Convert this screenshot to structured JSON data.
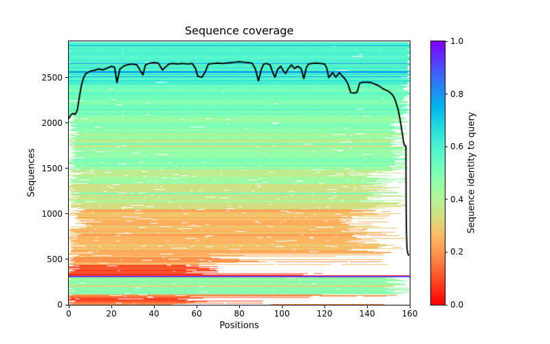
{
  "title": "Sequence coverage",
  "axes": {
    "xlabel": "Positions",
    "ylabel": "Sequences",
    "xlim": [
      0,
      160
    ],
    "ylim": [
      0,
      2900
    ],
    "xtick_labels": [
      "0",
      "20",
      "40",
      "60",
      "80",
      "100",
      "120",
      "140",
      "160"
    ],
    "xtick_values": [
      0,
      20,
      40,
      60,
      80,
      100,
      120,
      140,
      160
    ],
    "ytick_labels": [
      "0",
      "500",
      "1000",
      "1500",
      "2000",
      "2500"
    ],
    "ytick_values": [
      0,
      500,
      1000,
      1500,
      2000,
      2500
    ]
  },
  "colorbar": {
    "label": "Sequence identity to query",
    "tick_labels": [
      "1.0",
      "0.8",
      "0.6",
      "0.4",
      "0.2",
      "0.0"
    ],
    "tick_values": [
      1.0,
      0.8,
      0.6,
      0.4,
      0.2,
      0.0
    ],
    "vmin": 0.0,
    "vmax": 1.0,
    "colormap": "rainbow_r",
    "color_at_0": "#ff0000",
    "color_at_0_2": "#ff9650",
    "color_at_0_4": "#b2f296",
    "color_at_0_6": "#4deece",
    "color_at_0_8": "#1996f3",
    "color_at_1": "#7f00ff"
  },
  "chart_data": {
    "type": "heatmap",
    "title": "Sequence coverage",
    "xlabel": "Positions",
    "ylabel": "Sequences",
    "xlim": [
      0,
      160
    ],
    "ylim": [
      0,
      2900
    ],
    "n_positions": 160,
    "n_sequences": 2900,
    "colormap": "rainbow_r (identity 0 = red, 1 = purple)",
    "coverage_line": {
      "description": "number of aligned sequences per position (black line)",
      "color": "#000000",
      "width": 2,
      "points": [
        [
          0,
          2050
        ],
        [
          1,
          2090
        ],
        [
          2,
          2105
        ],
        [
          3,
          2095
        ],
        [
          4,
          2140
        ],
        [
          5,
          2290
        ],
        [
          6,
          2420
        ],
        [
          7,
          2500
        ],
        [
          8,
          2545
        ],
        [
          10,
          2570
        ],
        [
          12,
          2580
        ],
        [
          14,
          2595
        ],
        [
          16,
          2585
        ],
        [
          18,
          2605
        ],
        [
          20,
          2625
        ],
        [
          21.5,
          2615
        ],
        [
          22.6,
          2445
        ],
        [
          24,
          2595
        ],
        [
          26,
          2630
        ],
        [
          28,
          2645
        ],
        [
          30,
          2650
        ],
        [
          32,
          2640
        ],
        [
          33.5,
          2580
        ],
        [
          34.8,
          2530
        ],
        [
          36,
          2640
        ],
        [
          38,
          2660
        ],
        [
          40,
          2665
        ],
        [
          42,
          2660
        ],
        [
          44,
          2585
        ],
        [
          45.5,
          2620
        ],
        [
          47,
          2650
        ],
        [
          49,
          2655
        ],
        [
          51,
          2650
        ],
        [
          53,
          2655
        ],
        [
          56,
          2650
        ],
        [
          58,
          2655
        ],
        [
          59.5,
          2600
        ],
        [
          60.5,
          2515
        ],
        [
          62.5,
          2505
        ],
        [
          64,
          2560
        ],
        [
          65.5,
          2650
        ],
        [
          68,
          2655
        ],
        [
          70,
          2660
        ],
        [
          72,
          2655
        ],
        [
          74,
          2660
        ],
        [
          76,
          2665
        ],
        [
          78,
          2670
        ],
        [
          80,
          2675
        ],
        [
          82,
          2670
        ],
        [
          84,
          2665
        ],
        [
          86,
          2660
        ],
        [
          87.5,
          2600
        ],
        [
          89,
          2465
        ],
        [
          90.5,
          2600
        ],
        [
          91.5,
          2650
        ],
        [
          93,
          2655
        ],
        [
          94.5,
          2640
        ],
        [
          96,
          2540
        ],
        [
          96.8,
          2505
        ],
        [
          98,
          2590
        ],
        [
          99.5,
          2625
        ],
        [
          100.8,
          2570
        ],
        [
          101.8,
          2545
        ],
        [
          103,
          2600
        ],
        [
          104.5,
          2640
        ],
        [
          106,
          2600
        ],
        [
          107.5,
          2625
        ],
        [
          109,
          2600
        ],
        [
          110.3,
          2490
        ],
        [
          111.5,
          2610
        ],
        [
          112.5,
          2650
        ],
        [
          114,
          2655
        ],
        [
          116,
          2660
        ],
        [
          118,
          2655
        ],
        [
          120,
          2650
        ],
        [
          121,
          2610
        ],
        [
          122,
          2500
        ],
        [
          123.8,
          2555
        ],
        [
          125.3,
          2505
        ],
        [
          127,
          2555
        ],
        [
          128.5,
          2515
        ],
        [
          129.8,
          2480
        ],
        [
          131,
          2430
        ],
        [
          132.3,
          2335
        ],
        [
          134,
          2330
        ],
        [
          135.3,
          2340
        ],
        [
          136.5,
          2440
        ],
        [
          138,
          2450
        ],
        [
          140,
          2450
        ],
        [
          142,
          2445
        ],
        [
          144,
          2425
        ],
        [
          145.5,
          2410
        ],
        [
          147,
          2385
        ],
        [
          148.5,
          2365
        ],
        [
          150,
          2350
        ],
        [
          151.5,
          2320
        ],
        [
          152.5,
          2290
        ],
        [
          153.5,
          2230
        ],
        [
          154.5,
          2150
        ],
        [
          155.3,
          2060
        ],
        [
          156,
          1960
        ],
        [
          156.6,
          1870
        ],
        [
          157.1,
          1790
        ],
        [
          157.5,
          1755
        ],
        [
          158.2,
          1748
        ],
        [
          158.3,
          1100
        ],
        [
          158.45,
          800
        ],
        [
          158.7,
          620
        ],
        [
          159.1,
          565
        ],
        [
          159.5,
          545
        ]
      ]
    },
    "identity_bands": [
      {
        "seq_from": 0,
        "seq_to": 22,
        "id_min": 0.1,
        "id_max": 0.22,
        "start_min": 0,
        "start_max": 1,
        "end_modes": [
          {
            "p": 0.6,
            "min": 48,
            "max": 68
          },
          {
            "min": 100,
            "max": 148
          }
        ],
        "gap_factor": 1.6,
        "base_gap": 0.05
      },
      {
        "seq_from": 22,
        "seq_to": 95,
        "id_min": 0.05,
        "id_max": 0.15,
        "start_min": 0,
        "start_max": 1,
        "end_modes": [
          {
            "p": 0.7,
            "min": 50,
            "max": 68
          },
          {
            "min": 80,
            "max": 125
          }
        ],
        "gap_factor": 1.7,
        "base_gap": 0.06
      },
      {
        "seq_from": 95,
        "seq_to": 115,
        "id_min": 0.18,
        "id_max": 0.3,
        "start_min": 0,
        "start_max": 1,
        "end_min": 118,
        "end_max": 158,
        "gap_factor": 1.6,
        "base_gap": 0.05
      },
      {
        "seq_from": 115,
        "seq_to": 300,
        "id_min": 0.43,
        "id_max": 0.5,
        "outlier": {
          "prob": 0.08,
          "id_min": 0.28,
          "id_max": 0.36
        },
        "start_min": 0,
        "start_max": 1,
        "end_min": 147,
        "end_max": 160,
        "gap_factor": 0.8,
        "base_gap": 0.02
      },
      {
        "seq_from": 300,
        "seq_to": 313,
        "id_min": 0.24,
        "id_max": 0.34,
        "start_min": 0,
        "start_max": 1,
        "end_min": 130,
        "end_max": 160,
        "gap_factor": 1.2,
        "base_gap": 0.04
      },
      {
        "seq_from": 322,
        "seq_to": 332,
        "id_min": 0.07,
        "id_max": 0.12,
        "start_min": 0,
        "start_max": 1,
        "end_modes": [
          {
            "p": 0.5,
            "min": 55,
            "max": 90
          },
          {
            "min": 120,
            "max": 160
          }
        ],
        "gap_factor": 1.2,
        "base_gap": 0.05
      },
      {
        "seq_from": 332,
        "seq_to": 442,
        "id_min": 0.05,
        "id_max": 0.14,
        "start_min": 0,
        "start_max": 1,
        "end_modes": [
          {
            "p": 0.7,
            "min": 52,
            "max": 70
          },
          {
            "min": 90,
            "max": 152
          }
        ],
        "gap_factor": 1.7,
        "base_gap": 0.06
      },
      {
        "seq_from": 442,
        "seq_to": 562,
        "id_min": 0.17,
        "id_max": 0.28,
        "start_min": 0,
        "start_max": 3,
        "end_modes": [
          {
            "p": 0.5,
            "min": 55,
            "max": 100
          },
          {
            "min": 108,
            "max": 158
          }
        ],
        "gap_factor": 2.2,
        "base_gap": 0.06
      },
      {
        "seq_from": 562,
        "seq_to": 845,
        "id_min": 0.2,
        "id_max": 0.3,
        "outlier": {
          "prob": 0.06,
          "id_min": 0.32,
          "id_max": 0.38
        },
        "start_min": 0,
        "start_max": 2,
        "end_min": 126,
        "end_max": 158,
        "gap_factor": 2.3,
        "base_gap": 0.05
      },
      {
        "seq_from": 845,
        "seq_to": 1055,
        "id_min": 0.21,
        "id_max": 0.31,
        "start_min": 0,
        "start_max": 9,
        "end_min": 126,
        "end_max": 158,
        "gap_factor": 2.3,
        "base_gap": 0.05
      },
      {
        "seq_from": 1055,
        "seq_to": 1495,
        "id_min": 0.32,
        "id_max": 0.42,
        "outlier": {
          "prob": 0.15,
          "id_min": 0.44,
          "id_max": 0.5
        },
        "start_min": 0,
        "start_max": 2,
        "end_min": 136,
        "end_max": 159,
        "gap_factor": 1.9,
        "base_gap": 0.04
      },
      {
        "seq_from": 1495,
        "seq_to": 2085,
        "id_min": 0.42,
        "id_max": 0.52,
        "outlier": {
          "prob": 0.12,
          "id_min": 0.34,
          "id_max": 0.4
        },
        "start_min": 0,
        "start_max": 4,
        "end_min": 150,
        "end_max": 160,
        "gap_factor": 1.0,
        "base_gap": 0.02
      },
      {
        "seq_from": 2085,
        "seq_to": 2430,
        "id_min": 0.48,
        "id_max": 0.57,
        "start_min": 0,
        "start_max": 1,
        "end_min": 155,
        "end_max": 160,
        "gap_factor": 0.5,
        "base_gap": 0.01
      },
      {
        "seq_from": 2430,
        "seq_to": 2900,
        "id_min": 0.55,
        "id_max": 0.64,
        "outlier": {
          "prob": 0.05,
          "id_min": 0.7,
          "id_max": 0.82
        },
        "start_min": 0,
        "start_max": 0,
        "end_min": 158,
        "end_max": 160,
        "gap_factor": 0.18,
        "base_gap": 0.004
      }
    ],
    "highlight_rows": [
      {
        "seq": 318,
        "identity": 1.0,
        "x0": 0,
        "x1": 160,
        "note": "query row (purple)"
      },
      {
        "seq": 312,
        "identity": 0.82,
        "x0": 0,
        "x1": 160,
        "note": "blue row under query"
      },
      {
        "seq": 326,
        "identity": 0.08,
        "x0": 0,
        "x1": 160,
        "note": "red row above query"
      },
      {
        "seq": 10,
        "identity": 0.15,
        "x0": 95,
        "x1": 148,
        "note": "detached red segment bottom right"
      },
      {
        "seq": 2852,
        "identity": 0.78,
        "x0": 0,
        "x1": 160
      },
      {
        "seq": 2655,
        "identity": 0.8,
        "x0": 0,
        "x1": 160
      },
      {
        "seq": 2572,
        "identity": 0.74,
        "x0": 0,
        "x1": 160
      },
      {
        "seq": 2470,
        "identity": 0.7,
        "x0": 0,
        "x1": 160
      },
      {
        "seq": 2150,
        "identity": 0.6,
        "x0": 0,
        "x1": 160
      }
    ],
    "render_hints": {
      "seed": 42,
      "legend": "none",
      "grid": false,
      "colorbar_position": "right"
    }
  }
}
